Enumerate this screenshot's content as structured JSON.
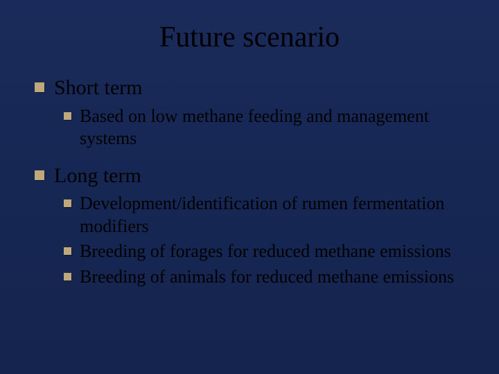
{
  "background": "#162653",
  "bullet_color": "#bfa97a",
  "text_color": "#000000",
  "title": {
    "text": "Future scenario",
    "fontsize": 42,
    "align": "center"
  },
  "sections": [
    {
      "heading": "Short term",
      "heading_fontsize": 30,
      "items": [
        {
          "text": "Based on low methane feeding and management systems",
          "fontsize": 26
        }
      ]
    },
    {
      "heading": "Long term",
      "heading_fontsize": 30,
      "items": [
        {
          "text": "Development/identification of rumen fermentation modifiers",
          "fontsize": 26
        },
        {
          "text": "Breeding of forages for reduced methane emissions",
          "fontsize": 26
        },
        {
          "text": "Breeding of animals for reduced methane emissions",
          "fontsize": 26
        }
      ]
    }
  ]
}
